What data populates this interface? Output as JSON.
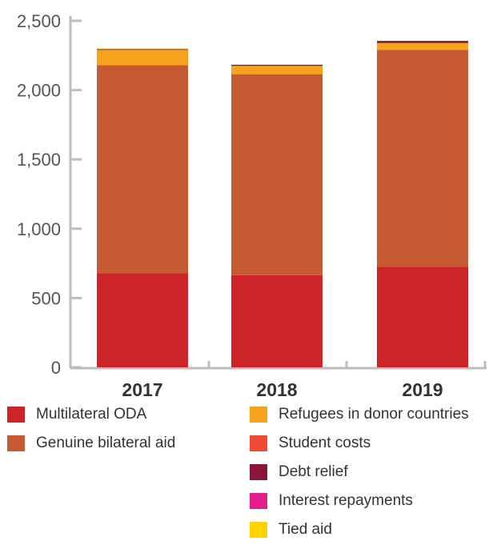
{
  "chart_data": {
    "type": "bar",
    "stacked": true,
    "categories": [
      "2017",
      "2018",
      "2019"
    ],
    "ylim": [
      0,
      2500
    ],
    "yticks": [
      "0",
      "500",
      "1,000",
      "1,500",
      "2,000",
      "2,500"
    ],
    "ytick_values": [
      0,
      500,
      1000,
      1500,
      2000,
      2500
    ],
    "grid": false,
    "legend_position": "bottom",
    "series": [
      {
        "name": "Multilateral ODA",
        "color": "#cc2429",
        "values": [
          680,
          665,
          725
        ]
      },
      {
        "name": "Genuine bilateral aid",
        "color": "#c65b33",
        "values": [
          1500,
          1450,
          1565
        ]
      },
      {
        "name": "Refugees in donor countries",
        "color": "#f6a21d",
        "values": [
          110,
          60,
          50
        ]
      },
      {
        "name": "Student costs",
        "color": "#ef4a35",
        "values": [
          0,
          0,
          0
        ]
      },
      {
        "name": "Debt relief",
        "color": "#8a1538",
        "values": [
          5,
          8,
          15
        ]
      },
      {
        "name": "Interest repayments",
        "color": "#e21e8b",
        "values": [
          0,
          0,
          0
        ]
      },
      {
        "name": "Tied aid",
        "color": "#ffd200",
        "values": [
          5,
          0,
          0
        ]
      }
    ]
  }
}
